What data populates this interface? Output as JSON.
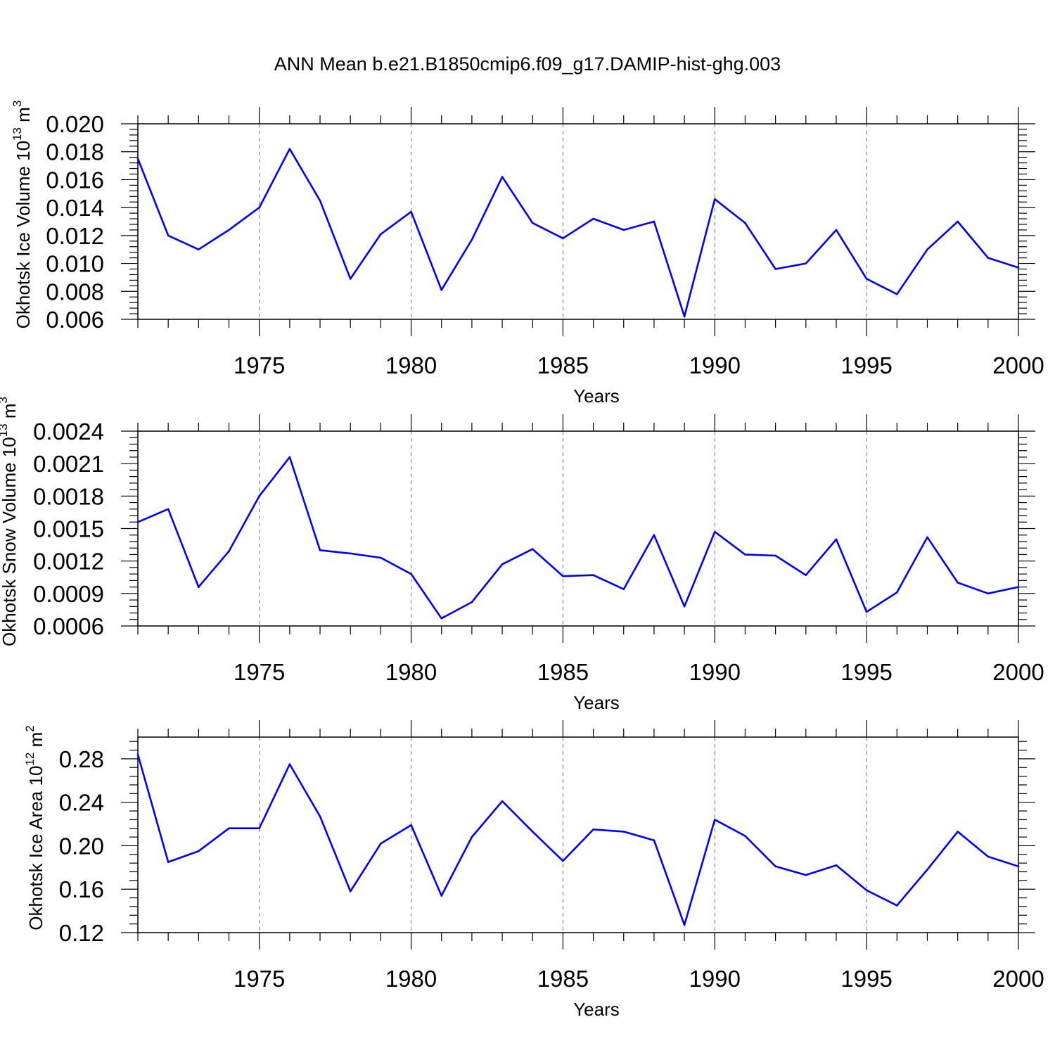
{
  "figure_title": "ANN Mean b.e21.B1850cmip6.f09_g17.DAMIP-hist-ghg.003",
  "colors": {
    "line": "#0000ff",
    "axis": "#000000",
    "grid": "#888888"
  },
  "chart_data": [
    {
      "type": "line",
      "title": "ANN Mean b.e21.B1850cmip6.f09_g17.DAMIP-hist-ghg.003",
      "xlabel": "Years",
      "ylabel": {
        "text": "Okhotsk Ice Volume 10",
        "exp": "13",
        "unit": "m",
        "unit_exp": "3"
      },
      "xlim": [
        1971,
        2000
      ],
      "ylim": [
        0.006,
        0.02
      ],
      "xticks": [
        1975,
        1980,
        1985,
        1990,
        1995,
        2000
      ],
      "xtick_labels": [
        "1975",
        "1980",
        "1985",
        "1990",
        "1995",
        "2000"
      ],
      "yticks": [
        0.006,
        0.008,
        0.01,
        0.012,
        0.014,
        0.016,
        0.018,
        0.02
      ],
      "ytick_labels": [
        "0.006",
        "0.008",
        "0.010",
        "0.012",
        "0.014",
        "0.016",
        "0.018",
        "0.020"
      ],
      "grid": "x-dashed",
      "x": [
        1971,
        1972,
        1973,
        1974,
        1975,
        1976,
        1977,
        1978,
        1979,
        1980,
        1981,
        1982,
        1983,
        1984,
        1985,
        1986,
        1987,
        1988,
        1989,
        1990,
        1991,
        1992,
        1993,
        1994,
        1995,
        1996,
        1997,
        1998,
        1999,
        2000
      ],
      "series": [
        {
          "values": [
            0.0175,
            0.012,
            0.011,
            0.0124,
            0.014,
            0.0182,
            0.0145,
            0.0089,
            0.0121,
            0.0137,
            0.0081,
            0.0117,
            0.0162,
            0.0129,
            0.0118,
            0.0132,
            0.0124,
            0.013,
            0.0062,
            0.0146,
            0.0129,
            0.0096,
            0.01,
            0.0124,
            0.0089,
            0.0078,
            0.011,
            0.013,
            0.0104,
            0.0097
          ]
        }
      ]
    },
    {
      "type": "line",
      "xlabel": "Years",
      "ylabel": {
        "text": "Okhotsk Snow Volume 10",
        "exp": "13",
        "unit": "m",
        "unit_exp": "3"
      },
      "xlim": [
        1971,
        2000
      ],
      "ylim": [
        0.0006,
        0.0024
      ],
      "xticks": [
        1975,
        1980,
        1985,
        1990,
        1995,
        2000
      ],
      "xtick_labels": [
        "1975",
        "1980",
        "1985",
        "1990",
        "1995",
        "2000"
      ],
      "yticks": [
        0.0006,
        0.0009,
        0.0012,
        0.0015,
        0.0018,
        0.0021,
        0.0024
      ],
      "ytick_labels": [
        "0.0006",
        "0.0009",
        "0.0012",
        "0.0015",
        "0.0018",
        "0.0021",
        "0.0024"
      ],
      "grid": "x-dashed",
      "x": [
        1971,
        1972,
        1973,
        1974,
        1975,
        1976,
        1977,
        1978,
        1979,
        1980,
        1981,
        1982,
        1983,
        1984,
        1985,
        1986,
        1987,
        1988,
        1989,
        1990,
        1991,
        1992,
        1993,
        1994,
        1995,
        1996,
        1997,
        1998,
        1999,
        2000
      ],
      "series": [
        {
          "values": [
            0.00156,
            0.00168,
            0.00096,
            0.00129,
            0.0018,
            0.00216,
            0.0013,
            0.00127,
            0.00123,
            0.00108,
            0.00067,
            0.00082,
            0.00117,
            0.00131,
            0.00106,
            0.00107,
            0.00094,
            0.00144,
            0.00078,
            0.00147,
            0.00126,
            0.00125,
            0.00107,
            0.0014,
            0.00073,
            0.00091,
            0.00142,
            0.001,
            0.0009,
            0.00096
          ]
        }
      ]
    },
    {
      "type": "line",
      "xlabel": "Years",
      "ylabel": {
        "text": "Okhotsk Ice Area 10",
        "exp": "12",
        "unit": "m",
        "unit_exp": "2"
      },
      "xlim": [
        1971,
        2000
      ],
      "ylim": [
        0.12,
        0.3
      ],
      "xticks": [
        1975,
        1980,
        1985,
        1990,
        1995,
        2000
      ],
      "xtick_labels": [
        "1975",
        "1980",
        "1985",
        "1990",
        "1995",
        "2000"
      ],
      "yticks": [
        0.12,
        0.16,
        0.2,
        0.24,
        0.28
      ],
      "ytick_labels": [
        "0.12",
        "0.16",
        "0.20",
        "0.24",
        "0.28"
      ],
      "grid": "x-dashed",
      "x": [
        1971,
        1972,
        1973,
        1974,
        1975,
        1976,
        1977,
        1978,
        1979,
        1980,
        1981,
        1982,
        1983,
        1984,
        1985,
        1986,
        1987,
        1988,
        1989,
        1990,
        1991,
        1992,
        1993,
        1994,
        1995,
        1996,
        1997,
        1998,
        1999,
        2000
      ],
      "series": [
        {
          "values": [
            0.284,
            0.185,
            0.195,
            0.216,
            0.216,
            0.275,
            0.227,
            0.158,
            0.202,
            0.219,
            0.154,
            0.208,
            0.241,
            0.213,
            0.186,
            0.215,
            0.213,
            0.205,
            0.127,
            0.224,
            0.209,
            0.181,
            0.173,
            0.182,
            0.159,
            0.145,
            0.178,
            0.213,
            0.19,
            0.181
          ]
        }
      ]
    }
  ]
}
